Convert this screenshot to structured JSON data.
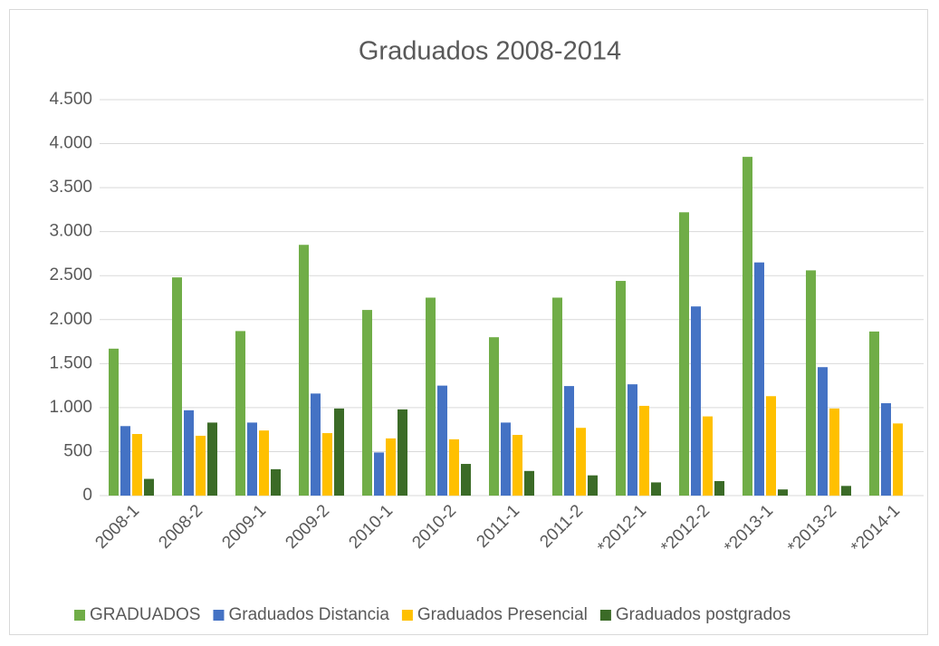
{
  "chart_data": {
    "type": "bar",
    "title": "Graduados 2008-2014",
    "categories": [
      "2008-1",
      "2008-2",
      "2009-1",
      "2009-2",
      "2010-1",
      "2010-2",
      "2011-1",
      "2011-2",
      "*2012-1",
      "*2012-2",
      "*2013-1",
      "*2013-2",
      "*2014-1"
    ],
    "series": [
      {
        "name": "GRADUADOS",
        "color": "#70ad47",
        "values": [
          1670,
          2480,
          1870,
          2850,
          2110,
          2250,
          1800,
          2250,
          2440,
          3220,
          3850,
          2560,
          1865
        ]
      },
      {
        "name": "Graduados Distancia",
        "color": "#4472c4",
        "values": [
          790,
          970,
          830,
          1160,
          490,
          1250,
          830,
          1245,
          1265,
          2150,
          2650,
          1460,
          1050
        ]
      },
      {
        "name": "Graduados Presencial",
        "color": "#ffc000",
        "values": [
          700,
          680,
          740,
          710,
          650,
          640,
          690,
          770,
          1020,
          900,
          1130,
          990,
          820
        ]
      },
      {
        "name": "Graduados postgrados",
        "color": "#3b6b27",
        "values": [
          190,
          830,
          300,
          990,
          980,
          360,
          280,
          230,
          150,
          165,
          70,
          110,
          null
        ]
      }
    ],
    "ylim": [
      0,
      4500
    ],
    "yticks": [
      0,
      500,
      {
        "value": 1000,
        "label": "1.000"
      },
      {
        "value": 1500,
        "label": "1.500"
      },
      {
        "value": 2000,
        "label": "2.000"
      },
      {
        "value": 2500,
        "label": "2.500"
      },
      {
        "value": 3000,
        "label": "3.000"
      },
      {
        "value": 3500,
        "label": "3.500"
      },
      {
        "value": 4000,
        "label": "4.000"
      },
      {
        "value": 4500,
        "label": "4.500"
      }
    ],
    "grid": true,
    "legend": "bottom"
  }
}
